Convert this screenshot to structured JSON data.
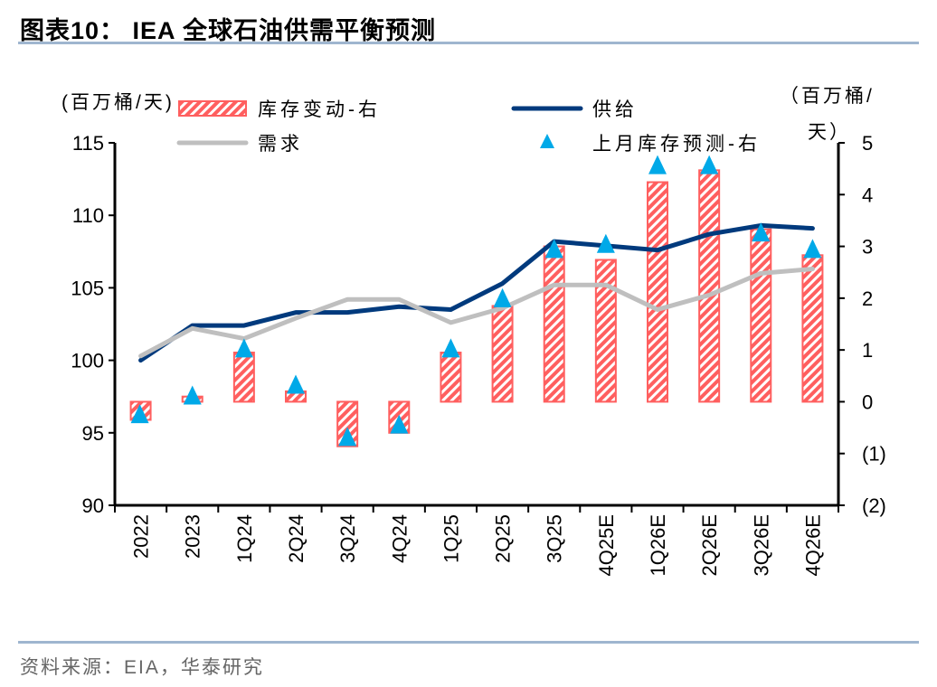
{
  "title": "图表10： IEA 全球石油供需平衡预测",
  "source": "资料来源：EIA，华泰研究",
  "chart_data": {
    "type": "bar+line",
    "left_axis": {
      "label": "(百万桶/天)",
      "range": [
        90,
        115
      ],
      "ticks": [
        90,
        95,
        100,
        105,
        110,
        115
      ],
      "tick_labels": [
        "90",
        "95",
        "100",
        "105",
        "110",
        "115"
      ]
    },
    "right_axis": {
      "label_line1": "（百万桶/",
      "label_line2": "天）",
      "range": [
        -2,
        5
      ],
      "ticks": [
        -2,
        -1,
        0,
        1,
        2,
        3,
        4,
        5
      ],
      "tick_labels": [
        "(2)",
        "(1)",
        "0",
        "1",
        "2",
        "3",
        "4",
        "5"
      ]
    },
    "categories": [
      "2022",
      "2023",
      "1Q24",
      "2Q24",
      "3Q24",
      "4Q24",
      "1Q25",
      "2Q25",
      "3Q25",
      "4Q25E",
      "1Q26E",
      "2Q26E",
      "3Q26E",
      "4Q26E"
    ],
    "series": [
      {
        "name": "库存变动-右",
        "type": "bar",
        "axis": "right",
        "color": "#FF5F5F",
        "values": [
          -0.35,
          0.1,
          0.95,
          0.2,
          -0.86,
          -0.6,
          0.95,
          1.85,
          3.0,
          2.74,
          4.24,
          4.47,
          3.33,
          2.83
        ]
      },
      {
        "name": "供给",
        "type": "line",
        "axis": "left",
        "color": "#003A7D",
        "values": [
          100.0,
          102.4,
          102.4,
          103.3,
          103.3,
          103.7,
          103.5,
          105.3,
          108.2,
          107.9,
          107.6,
          108.7,
          109.3,
          109.1
        ]
      },
      {
        "name": "需求",
        "type": "line",
        "axis": "left",
        "color": "#BFBFBF",
        "values": [
          100.3,
          102.2,
          101.5,
          102.9,
          104.2,
          104.2,
          102.6,
          103.6,
          105.2,
          105.2,
          103.5,
          104.5,
          106.0,
          106.3
        ]
      },
      {
        "name": "上月库存预测-右",
        "type": "scatter",
        "marker": "triangle",
        "axis": "right",
        "color": "#00A9E8",
        "values": [
          -0.24,
          0.12,
          1.03,
          0.33,
          -0.68,
          -0.44,
          1.03,
          2.0,
          2.95,
          3.05,
          4.57,
          4.57,
          3.27,
          2.95
        ]
      }
    ],
    "legend_position": "top",
    "grid": false
  }
}
